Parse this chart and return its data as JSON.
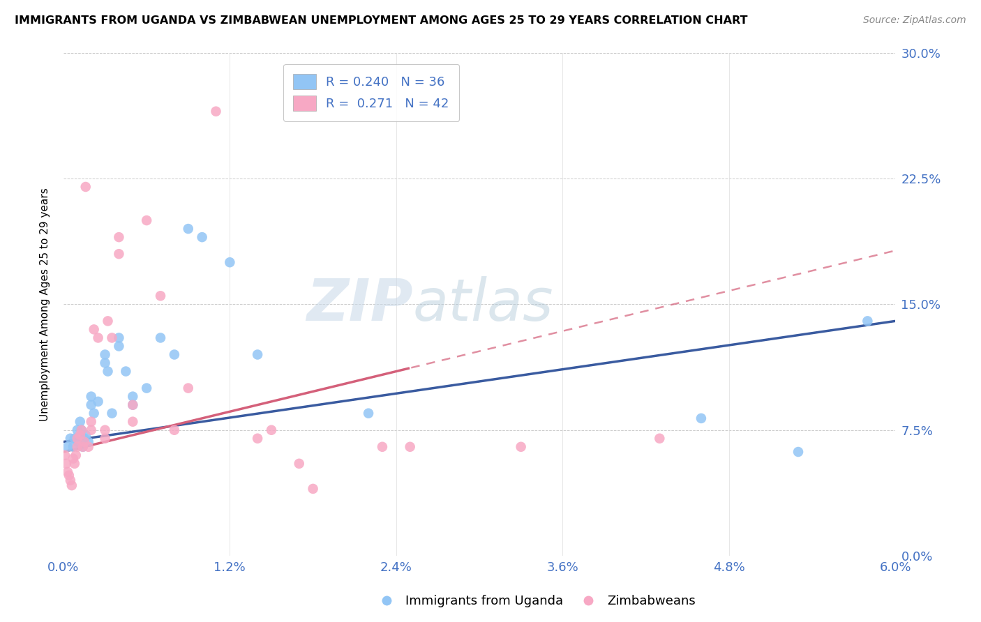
{
  "title": "IMMIGRANTS FROM UGANDA VS ZIMBABWEAN UNEMPLOYMENT AMONG AGES 25 TO 29 YEARS CORRELATION CHART",
  "source": "Source: ZipAtlas.com",
  "ylabel": "Unemployment Among Ages 25 to 29 years",
  "legend_label1": "Immigrants from Uganda",
  "legend_label2": "Zimbabweans",
  "r1": "0.240",
  "n1": "36",
  "r2": "0.271",
  "n2": "42",
  "xmin": 0.0,
  "xmax": 0.06,
  "ymin": 0.0,
  "ymax": 0.3,
  "yticks": [
    0.0,
    0.075,
    0.15,
    0.225,
    0.3
  ],
  "xticks": [
    0.0,
    0.012,
    0.024,
    0.036,
    0.048,
    0.06
  ],
  "color_blue": "#92C5F5",
  "color_pink": "#F7A8C4",
  "trend_blue": "#3A5BA0",
  "trend_pink": "#D4607A",
  "watermark_zip": "ZIP",
  "watermark_atlas": "atlas",
  "uganda_x": [
    0.0003,
    0.0005,
    0.0007,
    0.0008,
    0.001,
    0.001,
    0.0012,
    0.0013,
    0.0014,
    0.0015,
    0.0016,
    0.0018,
    0.002,
    0.002,
    0.0022,
    0.0025,
    0.003,
    0.003,
    0.0032,
    0.0035,
    0.004,
    0.004,
    0.0045,
    0.005,
    0.005,
    0.006,
    0.007,
    0.008,
    0.009,
    0.01,
    0.012,
    0.014,
    0.022,
    0.046,
    0.053,
    0.058
  ],
  "uganda_y": [
    0.065,
    0.07,
    0.065,
    0.07,
    0.075,
    0.068,
    0.08,
    0.075,
    0.065,
    0.07,
    0.072,
    0.068,
    0.095,
    0.09,
    0.085,
    0.092,
    0.12,
    0.115,
    0.11,
    0.085,
    0.13,
    0.125,
    0.11,
    0.095,
    0.09,
    0.1,
    0.13,
    0.12,
    0.195,
    0.19,
    0.175,
    0.12,
    0.085,
    0.082,
    0.062,
    0.14
  ],
  "zimb_x": [
    0.0001,
    0.0002,
    0.0003,
    0.0004,
    0.0005,
    0.0006,
    0.0007,
    0.0008,
    0.0009,
    0.001,
    0.001,
    0.0012,
    0.0013,
    0.0014,
    0.0015,
    0.0016,
    0.0018,
    0.002,
    0.002,
    0.0022,
    0.0025,
    0.003,
    0.003,
    0.0032,
    0.0035,
    0.004,
    0.004,
    0.005,
    0.005,
    0.006,
    0.007,
    0.008,
    0.009,
    0.011,
    0.014,
    0.015,
    0.017,
    0.018,
    0.023,
    0.025,
    0.033,
    0.043
  ],
  "zimb_y": [
    0.06,
    0.055,
    0.05,
    0.048,
    0.045,
    0.042,
    0.058,
    0.055,
    0.06,
    0.065,
    0.07,
    0.072,
    0.075,
    0.065,
    0.068,
    0.22,
    0.065,
    0.08,
    0.075,
    0.135,
    0.13,
    0.075,
    0.07,
    0.14,
    0.13,
    0.19,
    0.18,
    0.09,
    0.08,
    0.2,
    0.155,
    0.075,
    0.1,
    0.265,
    0.07,
    0.075,
    0.055,
    0.04,
    0.065,
    0.065,
    0.065,
    0.07
  ]
}
